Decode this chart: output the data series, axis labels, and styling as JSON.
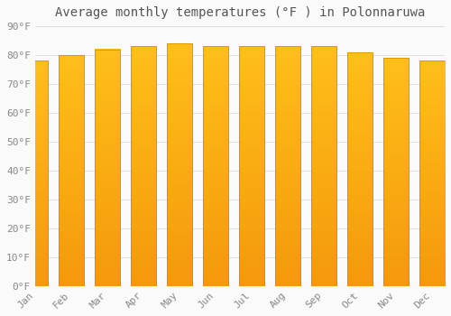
{
  "title": "Average monthly temperatures (°F ) in Polonnaruwa",
  "months": [
    "Jan",
    "Feb",
    "Mar",
    "Apr",
    "May",
    "Jun",
    "Jul",
    "Aug",
    "Sep",
    "Oct",
    "Nov",
    "Dec"
  ],
  "values": [
    78,
    80,
    82,
    83,
    84,
    83,
    83,
    83,
    83,
    81,
    79,
    78
  ],
  "bar_color_top": "#FFBC00",
  "bar_color_bottom": "#F5A000",
  "bar_edge_color": "#CC8800",
  "background_color": "#FAFAFA",
  "grid_color": "#E0E0E0",
  "text_color": "#888888",
  "ylim": [
    0,
    90
  ],
  "yticks": [
    0,
    10,
    20,
    30,
    40,
    50,
    60,
    70,
    80,
    90
  ],
  "ytick_labels": [
    "0°F",
    "10°F",
    "20°F",
    "30°F",
    "40°F",
    "50°F",
    "60°F",
    "70°F",
    "80°F",
    "90°F"
  ],
  "title_fontsize": 10,
  "tick_fontsize": 8
}
